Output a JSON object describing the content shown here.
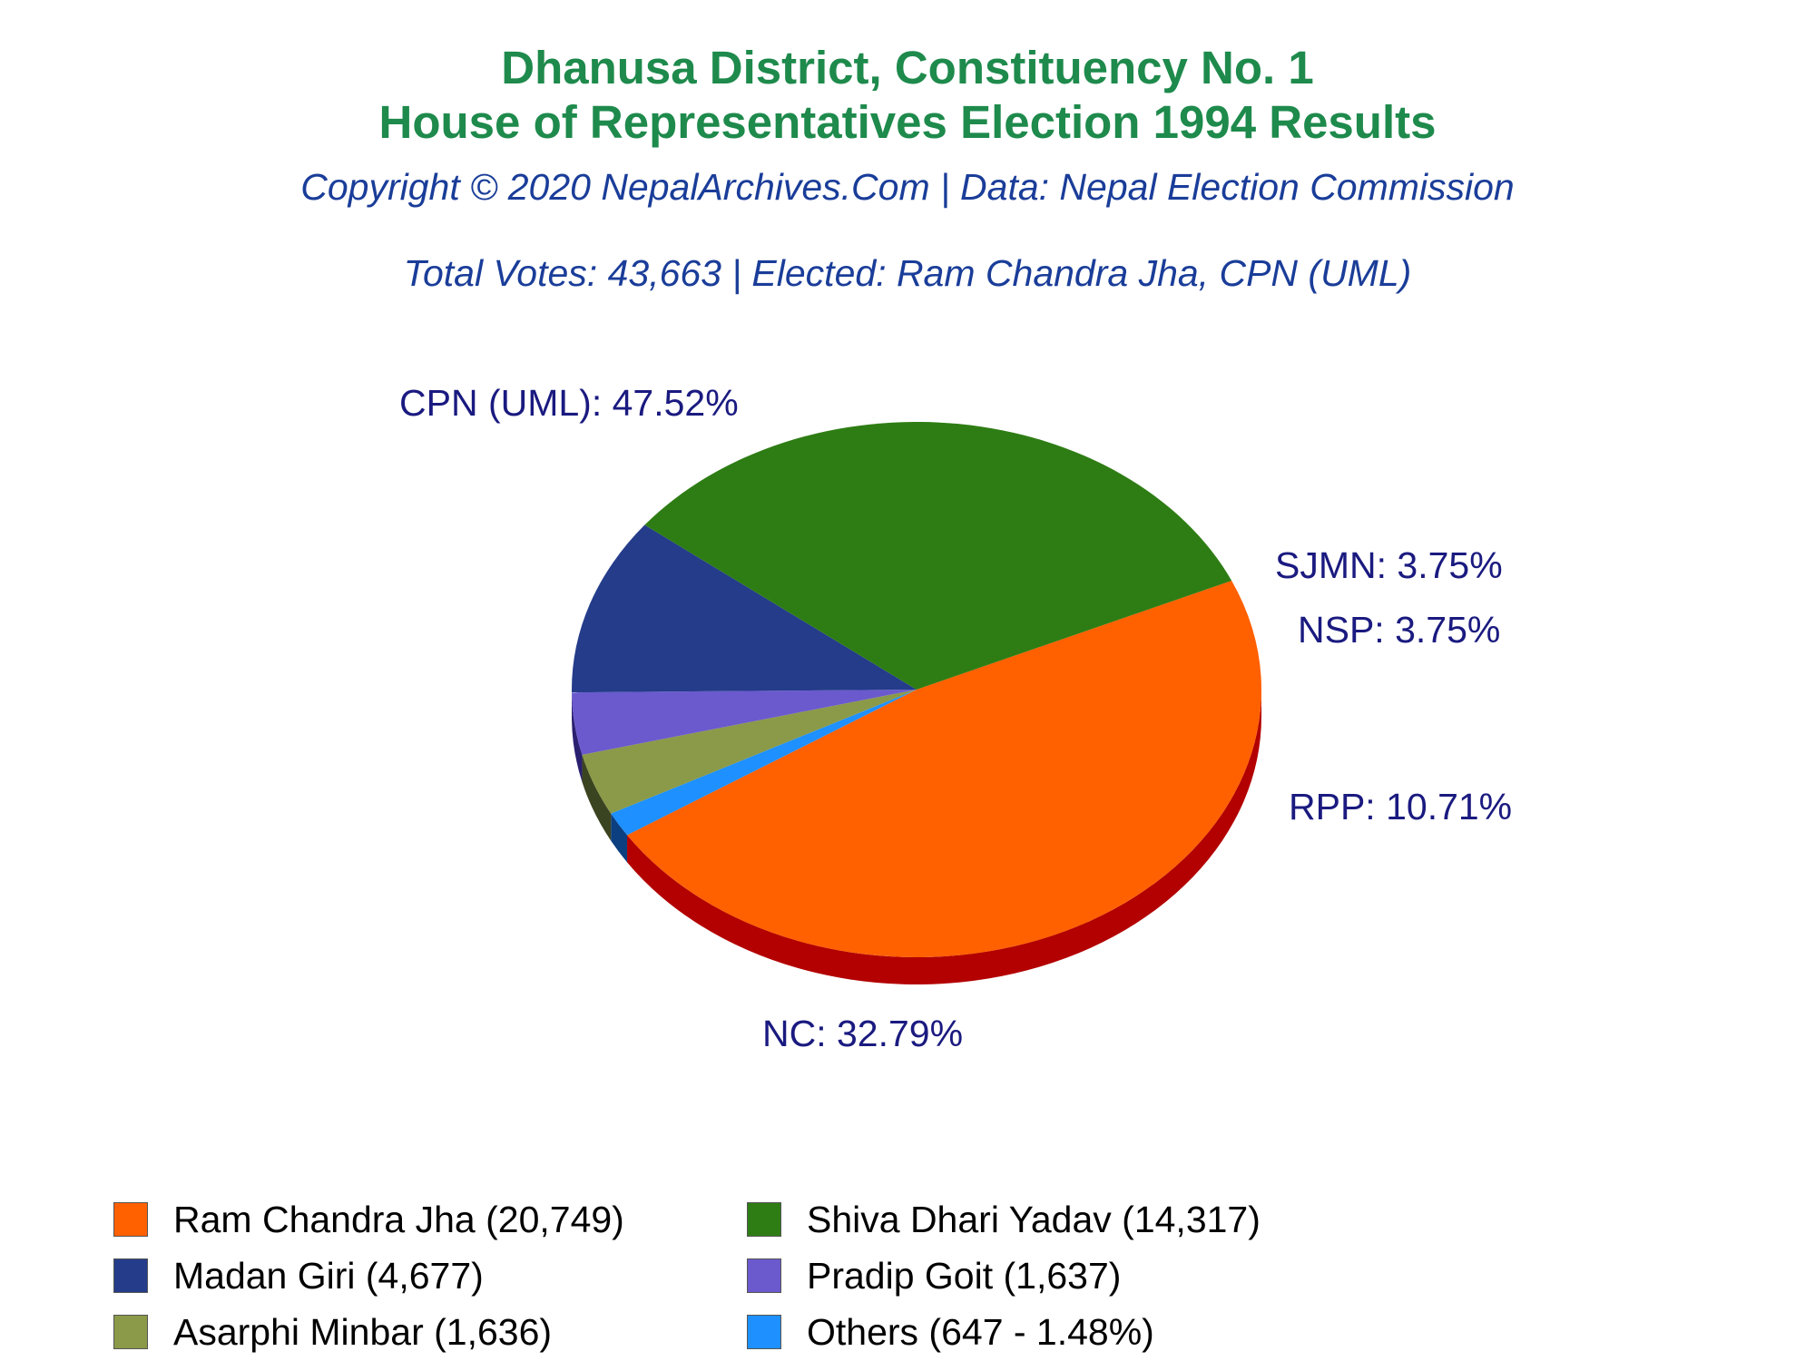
{
  "title_line1": "Dhanusa District, Constituency No. 1",
  "title_line2": "House of Representatives Election 1994 Results",
  "subtitle": "Copyright © 2020 NepalArchives.Com | Data: Nepal Election Commission",
  "summary": "Total Votes: 43,663 | Elected: Ram Chandra Jha, CPN (UML)",
  "colors": {
    "title": "#1e8a4c",
    "subtitle": "#1a3d99",
    "slice_label": "#1a1a80"
  },
  "chart_data": {
    "type": "pie",
    "style": "3d",
    "slices": [
      {
        "party": "CPN (UML)",
        "candidate": "Ram Chandra Jha",
        "votes": 20749,
        "percent": 47.52,
        "label": "CPN (UML): 47.52%",
        "color": "#ff6000",
        "side_color": "#b30000"
      },
      {
        "party": "Others",
        "candidate": "Others",
        "votes": 647,
        "percent": 1.48,
        "label": "",
        "color": "#1e90ff",
        "side_color": "#0b3f80"
      },
      {
        "party": "SJMN",
        "candidate": "Asarphi Minbar",
        "votes": 1636,
        "percent": 3.75,
        "label": "SJMN: 3.75%",
        "color": "#8a9a48",
        "side_color": "#3b4420"
      },
      {
        "party": "NSP",
        "candidate": "Pradip Goit",
        "votes": 1637,
        "percent": 3.75,
        "label": "NSP: 3.75%",
        "color": "#6a5acd",
        "side_color": "#2a2070"
      },
      {
        "party": "RPP",
        "candidate": "Madan Giri",
        "votes": 4677,
        "percent": 10.71,
        "label": "RPP: 10.71%",
        "color": "#243c8a",
        "side_color": "#000050"
      },
      {
        "party": "NC",
        "candidate": "Shiva Dhari Yadav",
        "votes": 14317,
        "percent": 32.79,
        "label": "NC: 32.79%",
        "color": "#2e7d14",
        "side_color": "#082600"
      }
    ],
    "legend": [
      {
        "label": "Ram Chandra Jha (20,749)",
        "color": "#ff6000"
      },
      {
        "label": "Shiva Dhari Yadav (14,317)",
        "color": "#2e7d14"
      },
      {
        "label": "Madan Giri (4,677)",
        "color": "#243c8a"
      },
      {
        "label": "Pradip Goit (1,637)",
        "color": "#6a5acd"
      },
      {
        "label": "Asarphi Minbar (1,636)",
        "color": "#8a9a48"
      },
      {
        "label": "Others (647 - 1.48%)",
        "color": "#1e90ff"
      }
    ],
    "legend_position": "bottom"
  }
}
